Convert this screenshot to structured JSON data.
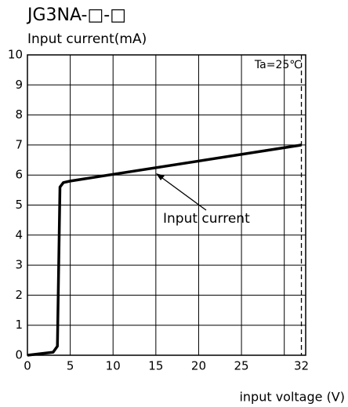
{
  "chart_data": {
    "type": "line",
    "title": "JG3NA-□-□",
    "ylabel": "Input current(mA)",
    "xlabel": "input voltage (V)",
    "annotation": "Input current",
    "condition": "Ta=25℃",
    "x": [
      0,
      3,
      3.5,
      3.8,
      4.2,
      5,
      32
    ],
    "series": [
      {
        "name": "Input current",
        "color": "#000000",
        "values": [
          0,
          0.1,
          0.3,
          5.6,
          5.75,
          5.8,
          7
        ]
      }
    ],
    "xlim": [
      0,
      32.5
    ],
    "ylim": [
      0,
      10
    ],
    "xticks": [
      0,
      5,
      10,
      15,
      20,
      25,
      32
    ],
    "xgrid": [
      0,
      5,
      10,
      15,
      20,
      25,
      30
    ],
    "dashed_x": 32,
    "yticks": [
      0,
      1,
      2,
      3,
      4,
      5,
      6,
      7,
      8,
      9,
      10
    ],
    "grid": true
  }
}
